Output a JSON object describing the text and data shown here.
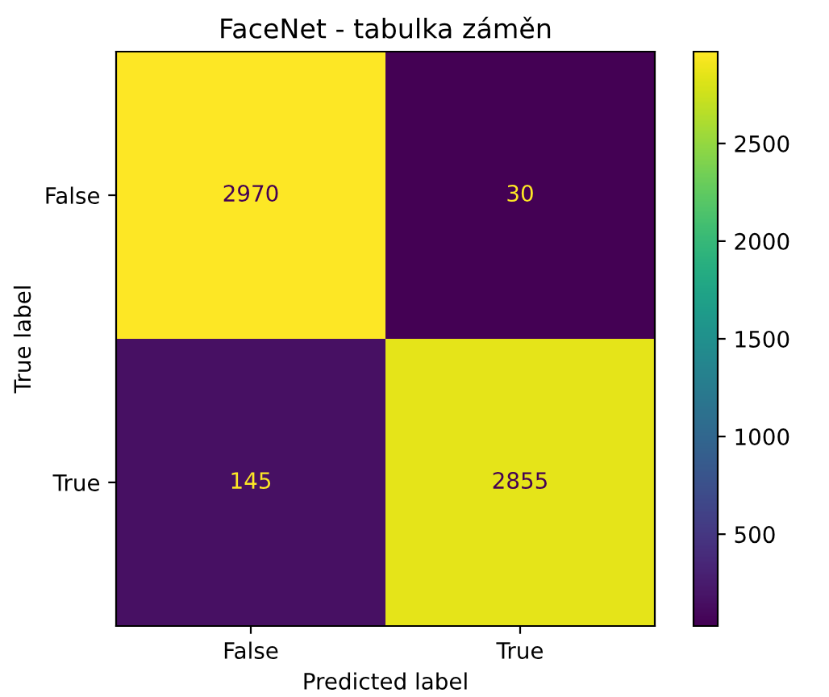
{
  "chart_data": {
    "type": "heatmap",
    "title": "FaceNet - tabulka záměn",
    "xlabel": "Predicted label",
    "ylabel": "True label",
    "categories": [
      "False",
      "True"
    ],
    "y_categories": [
      "False",
      "True"
    ],
    "cells": [
      [
        2970,
        30
      ],
      [
        145,
        2855
      ]
    ],
    "data_labels": true,
    "clim": [
      30,
      2970
    ],
    "cticks": [
      500,
      1000,
      1500,
      2000,
      2500
    ],
    "grid": false
  }
}
